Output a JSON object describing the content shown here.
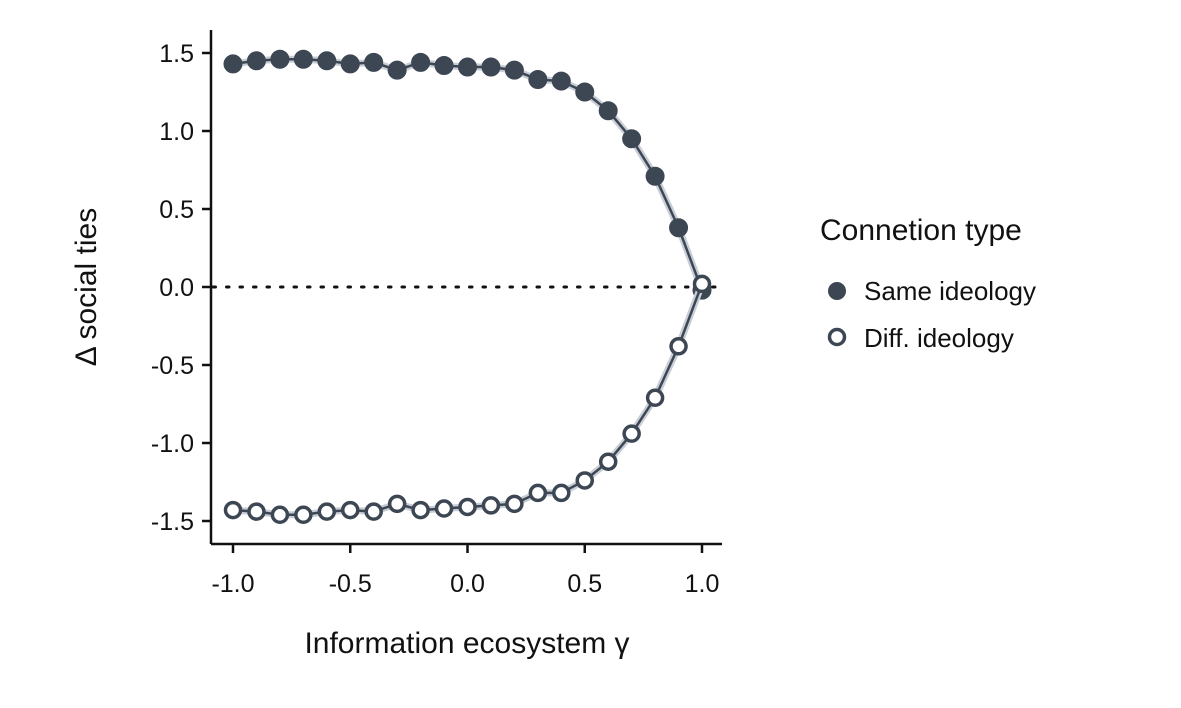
{
  "chart_data": {
    "type": "line",
    "title": "",
    "xlabel": "Information ecosystem γ",
    "ylabel": "Δ social ties",
    "xlim": [
      -1.05,
      1.05
    ],
    "ylim": [
      -1.65,
      1.65
    ],
    "xticks": [
      -1.0,
      -0.5,
      0.0,
      0.5,
      1.0
    ],
    "xtick_labels": [
      "-1.0",
      "-0.5",
      "0.0",
      "0.5",
      "1.0"
    ],
    "yticks": [
      1.5,
      1.0,
      0.5,
      0.0,
      -0.5,
      -1.0,
      -1.5
    ],
    "ytick_labels": [
      "1.5",
      "1.0",
      "0.5",
      "0.0",
      "-0.5",
      "-1.0",
      "-1.5"
    ],
    "reference_line": {
      "y": 0,
      "style": "dotted"
    },
    "grid": false,
    "legend": {
      "title": "Connetion type",
      "placement": "right",
      "entries": [
        "Same ideology",
        "Diff. ideology"
      ]
    },
    "x": [
      -1.0,
      -0.9,
      -0.8,
      -0.7,
      -0.6,
      -0.5,
      -0.4,
      -0.3,
      -0.2,
      -0.1,
      0.0,
      0.1,
      0.2,
      0.3,
      0.4,
      0.5,
      0.6,
      0.7,
      0.8,
      0.9,
      1.0
    ],
    "series": [
      {
        "name": "Same ideology",
        "marker": "filled-circle",
        "color": "#3d4754",
        "values": [
          1.43,
          1.45,
          1.46,
          1.46,
          1.45,
          1.43,
          1.44,
          1.39,
          1.44,
          1.42,
          1.41,
          1.41,
          1.39,
          1.33,
          1.32,
          1.25,
          1.13,
          0.95,
          0.71,
          0.38,
          -0.02
        ]
      },
      {
        "name": "Diff. ideology",
        "marker": "open-circle",
        "color": "#3d4754",
        "values": [
          -1.43,
          -1.44,
          -1.46,
          -1.46,
          -1.44,
          -1.43,
          -1.44,
          -1.39,
          -1.43,
          -1.42,
          -1.41,
          -1.4,
          -1.39,
          -1.32,
          -1.32,
          -1.24,
          -1.12,
          -0.94,
          -0.71,
          -0.38,
          0.02
        ]
      }
    ]
  }
}
